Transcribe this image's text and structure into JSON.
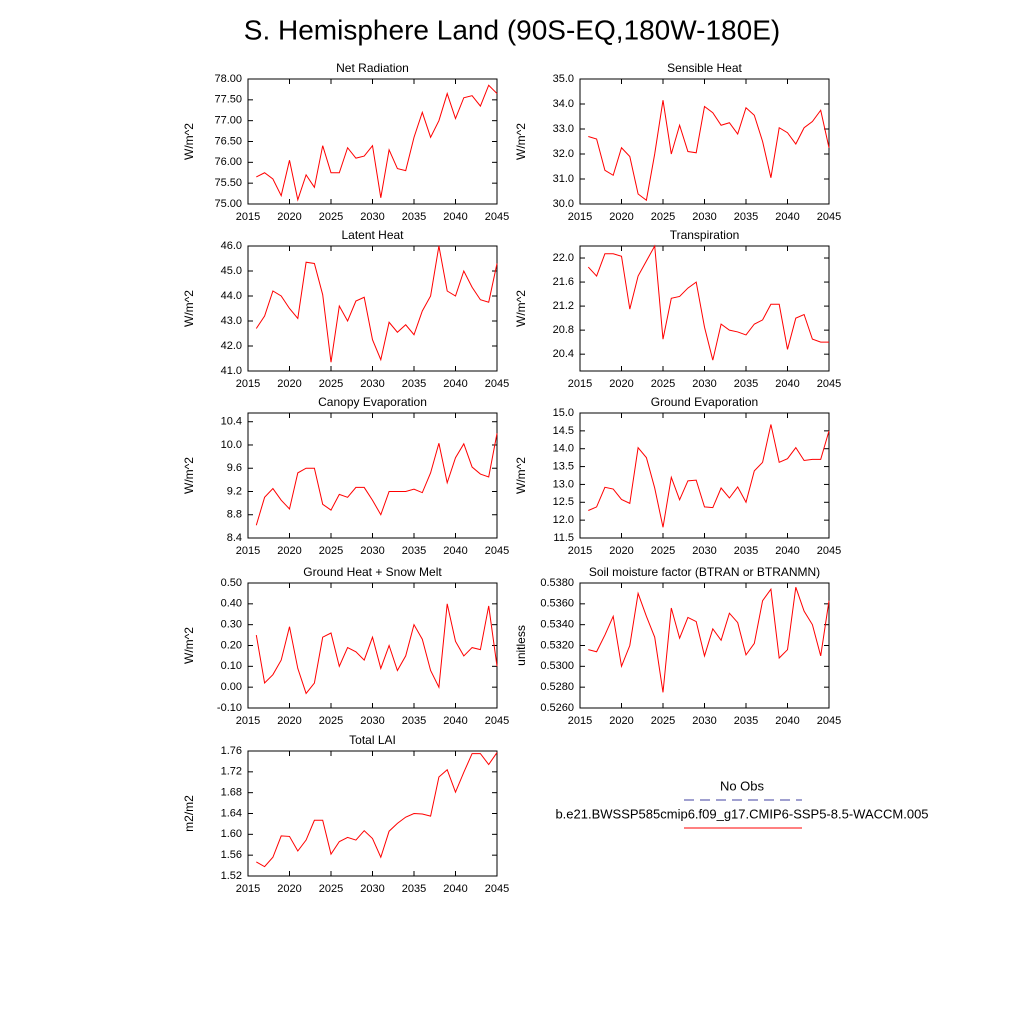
{
  "title": "S. Hemisphere Land (90S-EQ,180W-180E)",
  "chart_data": [
    {
      "type": "line",
      "title": "Net Radiation",
      "ylabel": "W/m^2",
      "color": "#ff0000",
      "x": [
        2016,
        2017,
        2018,
        2019,
        2020,
        2021,
        2022,
        2023,
        2024,
        2025,
        2026,
        2027,
        2028,
        2029,
        2030,
        2031,
        2032,
        2033,
        2034,
        2035,
        2036,
        2037,
        2038,
        2039,
        2040,
        2041,
        2042,
        2043,
        2044,
        2045
      ],
      "values": [
        75.65,
        75.75,
        75.6,
        75.2,
        76.05,
        75.1,
        75.7,
        75.4,
        76.4,
        75.75,
        75.75,
        76.35,
        76.1,
        76.15,
        76.4,
        75.15,
        76.3,
        75.85,
        75.8,
        76.6,
        77.2,
        76.6,
        77.0,
        77.65,
        77.05,
        77.55,
        77.6,
        77.35,
        77.85,
        77.65
      ],
      "xlim": [
        2015,
        2045
      ],
      "xticks": [
        2015,
        2020,
        2025,
        2030,
        2035,
        2040,
        2045
      ],
      "ylim": [
        75,
        78
      ],
      "yticks": [
        {
          "value": 75,
          "label": "75.00"
        },
        {
          "value": 75.5,
          "label": "75.50"
        },
        {
          "value": 76,
          "label": "76.00"
        },
        {
          "value": 76.5,
          "label": "76.50"
        },
        {
          "value": 77,
          "label": "77.00"
        },
        {
          "value": 77.5,
          "label": "77.50"
        },
        {
          "value": 78,
          "label": "78.00"
        }
      ]
    },
    {
      "type": "line",
      "title": "Sensible Heat",
      "ylabel": "W/m^2",
      "color": "#ff0000",
      "x": [
        2016,
        2017,
        2018,
        2019,
        2020,
        2021,
        2022,
        2023,
        2024,
        2025,
        2026,
        2027,
        2028,
        2029,
        2030,
        2031,
        2032,
        2033,
        2034,
        2035,
        2036,
        2037,
        2038,
        2039,
        2040,
        2041,
        2042,
        2043,
        2044,
        2045
      ],
      "values": [
        32.7,
        32.6,
        31.35,
        31.15,
        32.25,
        31.9,
        30.4,
        30.15,
        32.0,
        34.15,
        32.0,
        33.15,
        32.1,
        32.05,
        33.9,
        33.65,
        33.15,
        33.25,
        32.8,
        33.85,
        33.55,
        32.5,
        31.05,
        33.05,
        32.85,
        32.4,
        33.05,
        33.3,
        33.75,
        32.25
      ],
      "xlim": [
        2015,
        2045
      ],
      "xticks": [
        2015,
        2020,
        2025,
        2030,
        2035,
        2040,
        2045
      ],
      "ylim": [
        30,
        35
      ],
      "yticks": [
        {
          "value": 30,
          "label": "30.0"
        },
        {
          "value": 31,
          "label": "31.0"
        },
        {
          "value": 32,
          "label": "32.0"
        },
        {
          "value": 33,
          "label": "33.0"
        },
        {
          "value": 34,
          "label": "34.0"
        },
        {
          "value": 35,
          "label": "35.0"
        }
      ]
    },
    {
      "type": "line",
      "title": "Latent Heat",
      "ylabel": "W/m^2",
      "color": "#ff0000",
      "x": [
        2016,
        2017,
        2018,
        2019,
        2020,
        2021,
        2022,
        2023,
        2024,
        2025,
        2026,
        2027,
        2028,
        2029,
        2030,
        2031,
        2032,
        2033,
        2034,
        2035,
        2036,
        2037,
        2038,
        2039,
        2040,
        2041,
        2042,
        2043,
        2044,
        2045
      ],
      "values": [
        42.7,
        43.2,
        44.2,
        44.0,
        43.5,
        43.1,
        45.35,
        45.3,
        44.05,
        41.35,
        43.6,
        43.0,
        43.8,
        43.95,
        42.25,
        41.45,
        42.95,
        42.55,
        42.85,
        42.45,
        43.4,
        44.0,
        46.0,
        44.2,
        44.0,
        45.0,
        44.35,
        43.85,
        43.75,
        45.3
      ],
      "xlim": [
        2015,
        2045
      ],
      "xticks": [
        2015,
        2020,
        2025,
        2030,
        2035,
        2040,
        2045
      ],
      "ylim": [
        41,
        46
      ],
      "yticks": [
        {
          "value": 41,
          "label": "41.0"
        },
        {
          "value": 42,
          "label": "42.0"
        },
        {
          "value": 43,
          "label": "43.0"
        },
        {
          "value": 44,
          "label": "44.0"
        },
        {
          "value": 45,
          "label": "45.0"
        },
        {
          "value": 46,
          "label": "46.0"
        }
      ]
    },
    {
      "type": "line",
      "title": "Transpiration",
      "ylabel": "W/m^2",
      "color": "#ff0000",
      "x": [
        2016,
        2017,
        2018,
        2019,
        2020,
        2021,
        2022,
        2023,
        2024,
        2025,
        2026,
        2027,
        2028,
        2029,
        2030,
        2031,
        2032,
        2033,
        2034,
        2035,
        2036,
        2037,
        2038,
        2039,
        2040,
        2041,
        2042,
        2043,
        2044,
        2045
      ],
      "values": [
        21.85,
        21.7,
        22.07,
        22.07,
        22.03,
        21.15,
        21.7,
        21.95,
        22.2,
        20.65,
        21.33,
        21.36,
        21.5,
        21.6,
        20.85,
        20.3,
        20.9,
        20.8,
        20.77,
        20.72,
        20.9,
        20.97,
        21.23,
        21.23,
        20.48,
        21.0,
        21.06,
        20.65,
        20.6,
        20.6
      ],
      "xlim": [
        2015,
        2045
      ],
      "xticks": [
        2015,
        2020,
        2025,
        2030,
        2035,
        2040,
        2045
      ],
      "ylim": [
        20.12,
        22.2
      ],
      "yticks": [
        20.4,
        20.8,
        21.2,
        21.6,
        {
          "value": 22,
          "label": "22.0"
        }
      ]
    },
    {
      "type": "line",
      "title": "Canopy Evaporation",
      "ylabel": "W/m^2",
      "color": "#ff0000",
      "x": [
        2016,
        2017,
        2018,
        2019,
        2020,
        2021,
        2022,
        2023,
        2024,
        2025,
        2026,
        2027,
        2028,
        2029,
        2030,
        2031,
        2032,
        2033,
        2034,
        2035,
        2036,
        2037,
        2038,
        2039,
        2040,
        2041,
        2042,
        2043,
        2044,
        2045
      ],
      "values": [
        8.62,
        9.1,
        9.25,
        9.05,
        8.9,
        9.52,
        9.6,
        9.6,
        8.98,
        8.88,
        9.15,
        9.1,
        9.27,
        9.27,
        9.05,
        8.8,
        9.2,
        9.2,
        9.2,
        9.24,
        9.18,
        9.52,
        10.03,
        9.35,
        9.78,
        10.02,
        9.62,
        9.5,
        9.45,
        10.2
      ],
      "xlim": [
        2015,
        2045
      ],
      "xticks": [
        2015,
        2020,
        2025,
        2030,
        2035,
        2040,
        2045
      ],
      "ylim": [
        8.4,
        10.55
      ],
      "yticks": [
        8.4,
        8.8,
        9.2,
        9.6,
        {
          "value": 10,
          "label": "10.0"
        },
        10.4
      ]
    },
    {
      "type": "line",
      "title": "Ground Evaporation",
      "ylabel": "W/m^2",
      "color": "#ff0000",
      "x": [
        2016,
        2017,
        2018,
        2019,
        2020,
        2021,
        2022,
        2023,
        2024,
        2025,
        2026,
        2027,
        2028,
        2029,
        2030,
        2031,
        2032,
        2033,
        2034,
        2035,
        2036,
        2037,
        2038,
        2039,
        2040,
        2041,
        2042,
        2043,
        2044,
        2045
      ],
      "values": [
        12.27,
        12.37,
        12.92,
        12.87,
        12.58,
        12.47,
        14.03,
        13.75,
        12.9,
        11.8,
        13.2,
        12.57,
        13.1,
        13.12,
        12.37,
        12.35,
        12.9,
        12.62,
        12.93,
        12.5,
        13.38,
        13.62,
        14.68,
        13.62,
        13.72,
        14.03,
        13.67,
        13.7,
        13.7,
        14.5
      ],
      "xlim": [
        2015,
        2045
      ],
      "xticks": [
        2015,
        2020,
        2025,
        2030,
        2035,
        2040,
        2045
      ],
      "ylim": [
        11.5,
        15
      ],
      "yticks": [
        11.5,
        {
          "value": 12,
          "label": "12.0"
        },
        12.5,
        {
          "value": 13,
          "label": "13.0"
        },
        13.5,
        {
          "value": 14,
          "label": "14.0"
        },
        14.5,
        {
          "value": 15,
          "label": "15.0"
        }
      ]
    },
    {
      "type": "line",
      "title": "Ground Heat + Snow Melt",
      "ylabel": "W/m^2",
      "color": "#ff0000",
      "x": [
        2016,
        2017,
        2018,
        2019,
        2020,
        2021,
        2022,
        2023,
        2024,
        2025,
        2026,
        2027,
        2028,
        2029,
        2030,
        2031,
        2032,
        2033,
        2034,
        2035,
        2036,
        2037,
        2038,
        2039,
        2040,
        2041,
        2042,
        2043,
        2044,
        2045
      ],
      "values": [
        0.25,
        0.02,
        0.06,
        0.13,
        0.29,
        0.09,
        -0.03,
        0.02,
        0.24,
        0.26,
        0.1,
        0.19,
        0.17,
        0.13,
        0.24,
        0.09,
        0.2,
        0.08,
        0.15,
        0.3,
        0.23,
        0.08,
        0.0,
        0.4,
        0.22,
        0.15,
        0.19,
        0.18,
        0.39,
        0.1
      ],
      "xlim": [
        2015,
        2045
      ],
      "xticks": [
        2015,
        2020,
        2025,
        2030,
        2035,
        2040,
        2045
      ],
      "ylim": [
        -0.1,
        0.5
      ],
      "yticks": [
        {
          "value": -0.1,
          "label": "-0.10"
        },
        {
          "value": 0,
          "label": "0.00"
        },
        {
          "value": 0.1,
          "label": "0.10"
        },
        {
          "value": 0.2,
          "label": "0.20"
        },
        {
          "value": 0.3,
          "label": "0.30"
        },
        {
          "value": 0.4,
          "label": "0.40"
        },
        {
          "value": 0.5,
          "label": "0.50"
        }
      ]
    },
    {
      "type": "line",
      "title": "Soil moisture factor (BTRAN or BTRANMN)",
      "ylabel": "unitless",
      "color": "#ff0000",
      "x": [
        2016,
        2017,
        2018,
        2019,
        2020,
        2021,
        2022,
        2023,
        2024,
        2025,
        2026,
        2027,
        2028,
        2029,
        2030,
        2031,
        2032,
        2033,
        2034,
        2035,
        2036,
        2037,
        2038,
        2039,
        2040,
        2041,
        2042,
        2043,
        2044,
        2045
      ],
      "values": [
        0.5316,
        0.5314,
        0.533,
        0.5348,
        0.53,
        0.532,
        0.537,
        0.5348,
        0.5328,
        0.5275,
        0.5356,
        0.5327,
        0.5347,
        0.5343,
        0.531,
        0.5336,
        0.5325,
        0.5351,
        0.5342,
        0.5311,
        0.5322,
        0.5363,
        0.5374,
        0.5308,
        0.5316,
        0.5376,
        0.5353,
        0.534,
        0.531,
        0.5363
      ],
      "xlim": [
        2015,
        2045
      ],
      "xticks": [
        2015,
        2020,
        2025,
        2030,
        2035,
        2040,
        2045
      ],
      "ylim": [
        0.526,
        0.538
      ],
      "yticks": [
        {
          "value": 0.526,
          "label": "0.5260"
        },
        {
          "value": 0.528,
          "label": "0.5280"
        },
        {
          "value": 0.53,
          "label": "0.5300"
        },
        {
          "value": 0.532,
          "label": "0.5320"
        },
        {
          "value": 0.534,
          "label": "0.5340"
        },
        {
          "value": 0.536,
          "label": "0.5360"
        },
        {
          "value": 0.538,
          "label": "0.5380"
        }
      ]
    },
    {
      "type": "line",
      "title": "Total LAI",
      "ylabel": "m2/m2",
      "color": "#ff0000",
      "x": [
        2016,
        2017,
        2018,
        2019,
        2020,
        2021,
        2022,
        2023,
        2024,
        2025,
        2026,
        2027,
        2028,
        2029,
        2030,
        2031,
        2032,
        2033,
        2034,
        2035,
        2036,
        2037,
        2038,
        2039,
        2040,
        2041,
        2042,
        2043,
        2044,
        2045
      ],
      "values": [
        1.547,
        1.538,
        1.556,
        1.597,
        1.596,
        1.568,
        1.589,
        1.627,
        1.627,
        1.562,
        1.586,
        1.594,
        1.589,
        1.607,
        1.592,
        1.556,
        1.606,
        1.621,
        1.633,
        1.64,
        1.639,
        1.635,
        1.71,
        1.724,
        1.681,
        1.719,
        1.755,
        1.755,
        1.734,
        1.757
      ],
      "xlim": [
        2015,
        2045
      ],
      "xticks": [
        2015,
        2020,
        2025,
        2030,
        2035,
        2040,
        2045
      ],
      "ylim": [
        1.52,
        1.76
      ],
      "yticks": [
        1.52,
        1.56,
        {
          "value": 1.6,
          "label": "1.60"
        },
        1.64,
        1.68,
        1.72,
        1.76
      ]
    }
  ],
  "legend": [
    {
      "name": "No Obs",
      "color": "#4040a0",
      "dashed": true
    },
    {
      "name": "b.e21.BWSSP585cmip6.f09_g17.CMIP6-SSP5-8.5-WACCM.005",
      "color": "#ff0000",
      "dashed": false
    }
  ]
}
